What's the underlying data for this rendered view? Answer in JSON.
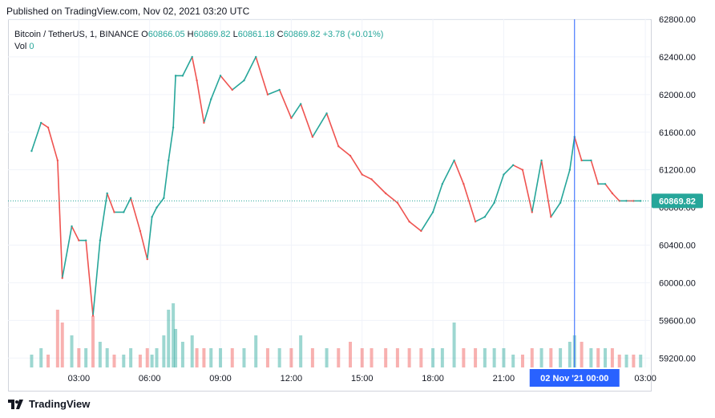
{
  "header": {
    "published": "Published on TradingView.com, Nov 02, 2021 03:20 UTC"
  },
  "legend": {
    "symbol": "Bitcoin / TetherUS, 1, BINANCE",
    "o_label": "O",
    "o_value": "60866.05",
    "h_label": "H",
    "h_value": "60869.82",
    "l_label": "L",
    "l_value": "60861.18",
    "c_label": "C",
    "c_value": "60869.82",
    "change": "+3.78 (+0.01%)",
    "vol_label": "Vol",
    "vol_value": "0"
  },
  "price_tag": "60869.82",
  "crosshair_label": "02 Nov '21   00:00",
  "footer": {
    "brand": "TradingView"
  },
  "colors": {
    "up": "#26a69a",
    "down": "#ef5350",
    "crosshair": "#2962ff",
    "price_line": "#26a69a"
  },
  "chart_data": {
    "type": "line",
    "title": "Bitcoin / TetherUS, 1, BINANCE",
    "x_ticks": [
      "03:00",
      "06:00",
      "09:00",
      "12:00",
      "15:00",
      "18:00",
      "21:00",
      "02 Nov '21   00:00",
      "03:00"
    ],
    "y_ticks": [
      "62800.00",
      "62400.00",
      "62000.00",
      "61600.00",
      "61200.00",
      "60800.00",
      "60400.00",
      "60000.00",
      "59600.00",
      "59200.00"
    ],
    "ylim": [
      59100,
      62800
    ],
    "x_hours": [
      1.0,
      1.4,
      1.7,
      2.1,
      2.3,
      2.7,
      3.0,
      3.3,
      3.6,
      3.9,
      4.2,
      4.5,
      4.9,
      5.2,
      5.6,
      5.9,
      6.1,
      6.3,
      6.6,
      6.8,
      7.0,
      7.1,
      7.4,
      7.8,
      8.0,
      8.3,
      8.6,
      9.0,
      9.5,
      10.0,
      10.5,
      11.0,
      11.5,
      12.0,
      12.4,
      12.9,
      13.5,
      14.0,
      14.5,
      15.0,
      15.4,
      16.0,
      16.5,
      17.0,
      17.5,
      18.0,
      18.4,
      18.9,
      19.3,
      19.8,
      20.2,
      20.6,
      21.0,
      21.4,
      21.8,
      22.2,
      22.6,
      23.0,
      23.4,
      23.8,
      24.0,
      24.3,
      24.7,
      25.0,
      25.3,
      25.6,
      25.9,
      26.2,
      26.5,
      26.8
    ],
    "close": [
      61400,
      61700,
      61650,
      61300,
      60050,
      60600,
      60450,
      60450,
      59650,
      60450,
      60950,
      60750,
      60750,
      60900,
      60550,
      60250,
      60700,
      60800,
      60900,
      61300,
      61650,
      62200,
      62200,
      62400,
      62150,
      61700,
      61950,
      62200,
      62050,
      62150,
      62400,
      62000,
      62050,
      61750,
      61900,
      61550,
      61800,
      61450,
      61350,
      61150,
      61100,
      60950,
      60850,
      60650,
      60550,
      60750,
      61050,
      61300,
      61050,
      60650,
      60700,
      60850,
      61150,
      61250,
      61200,
      60750,
      61300,
      60700,
      60850,
      61200,
      61550,
      61300,
      61300,
      61050,
      61050,
      60950,
      60870,
      60870,
      60869.82,
      60869.82
    ],
    "volume_relative": [
      0.2,
      0.3,
      0.2,
      0.9,
      0.7,
      0.5,
      0.3,
      0.3,
      0.8,
      0.4,
      0.3,
      0.2,
      0.2,
      0.3,
      0.2,
      0.3,
      0.2,
      0.3,
      0.5,
      0.9,
      1.0,
      0.6,
      0.4,
      0.5,
      0.3,
      0.3,
      0.3,
      0.3,
      0.3,
      0.3,
      0.5,
      0.3,
      0.3,
      0.3,
      0.5,
      0.3,
      0.3,
      0.3,
      0.4,
      0.3,
      0.3,
      0.3,
      0.3,
      0.3,
      0.3,
      0.3,
      0.3,
      0.7,
      0.3,
      0.3,
      0.3,
      0.3,
      0.3,
      0.2,
      0.2,
      0.3,
      0.3,
      0.3,
      0.3,
      0.4,
      0.5,
      0.4,
      0.3,
      0.3,
      0.3,
      0.3,
      0.2,
      0.2,
      0.2,
      0.2
    ],
    "last_price": 60869.82,
    "crosshair_hour": 24.0,
    "grid": true
  }
}
